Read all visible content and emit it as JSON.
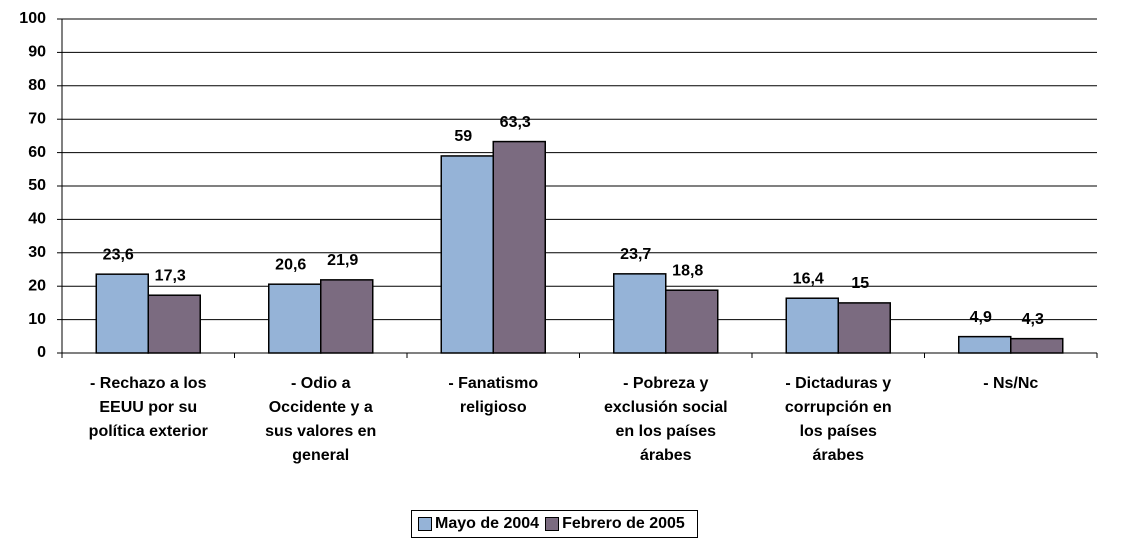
{
  "chart_data": {
    "type": "bar",
    "categories": [
      "- Rechazo a los\nEEUU por su\npolítica exterior",
      "- Odio a\nOccidente y a\nsus valores en\ngeneral",
      "- Fanatismo\nreligioso",
      "- Pobreza y\nexclusión social\nen los países\nárabes",
      "- Dictaduras y\ncorrupción en\nlos países\nárabes",
      "- Ns/Nc"
    ],
    "series": [
      {
        "name": "Mayo de 2004",
        "color": "#95b3d7",
        "values": [
          23.6,
          20.6,
          59,
          23.7,
          16.4,
          4.9
        ],
        "value_labels": [
          "23,6",
          "20,6",
          "59",
          "23,7",
          "16,4",
          "4,9"
        ]
      },
      {
        "name": "Febrero de 2005",
        "color": "#7b6b80",
        "values": [
          17.3,
          21.9,
          63.3,
          18.8,
          15,
          4.3
        ],
        "value_labels": [
          "17,3",
          "21,9",
          "63,3",
          "18,8",
          "15",
          "4,3"
        ]
      }
    ],
    "ylim": [
      0,
      100
    ],
    "yticks": [
      0,
      10,
      20,
      30,
      40,
      50,
      60,
      70,
      80,
      90,
      100
    ],
    "grid": true,
    "legend": "bottom"
  }
}
